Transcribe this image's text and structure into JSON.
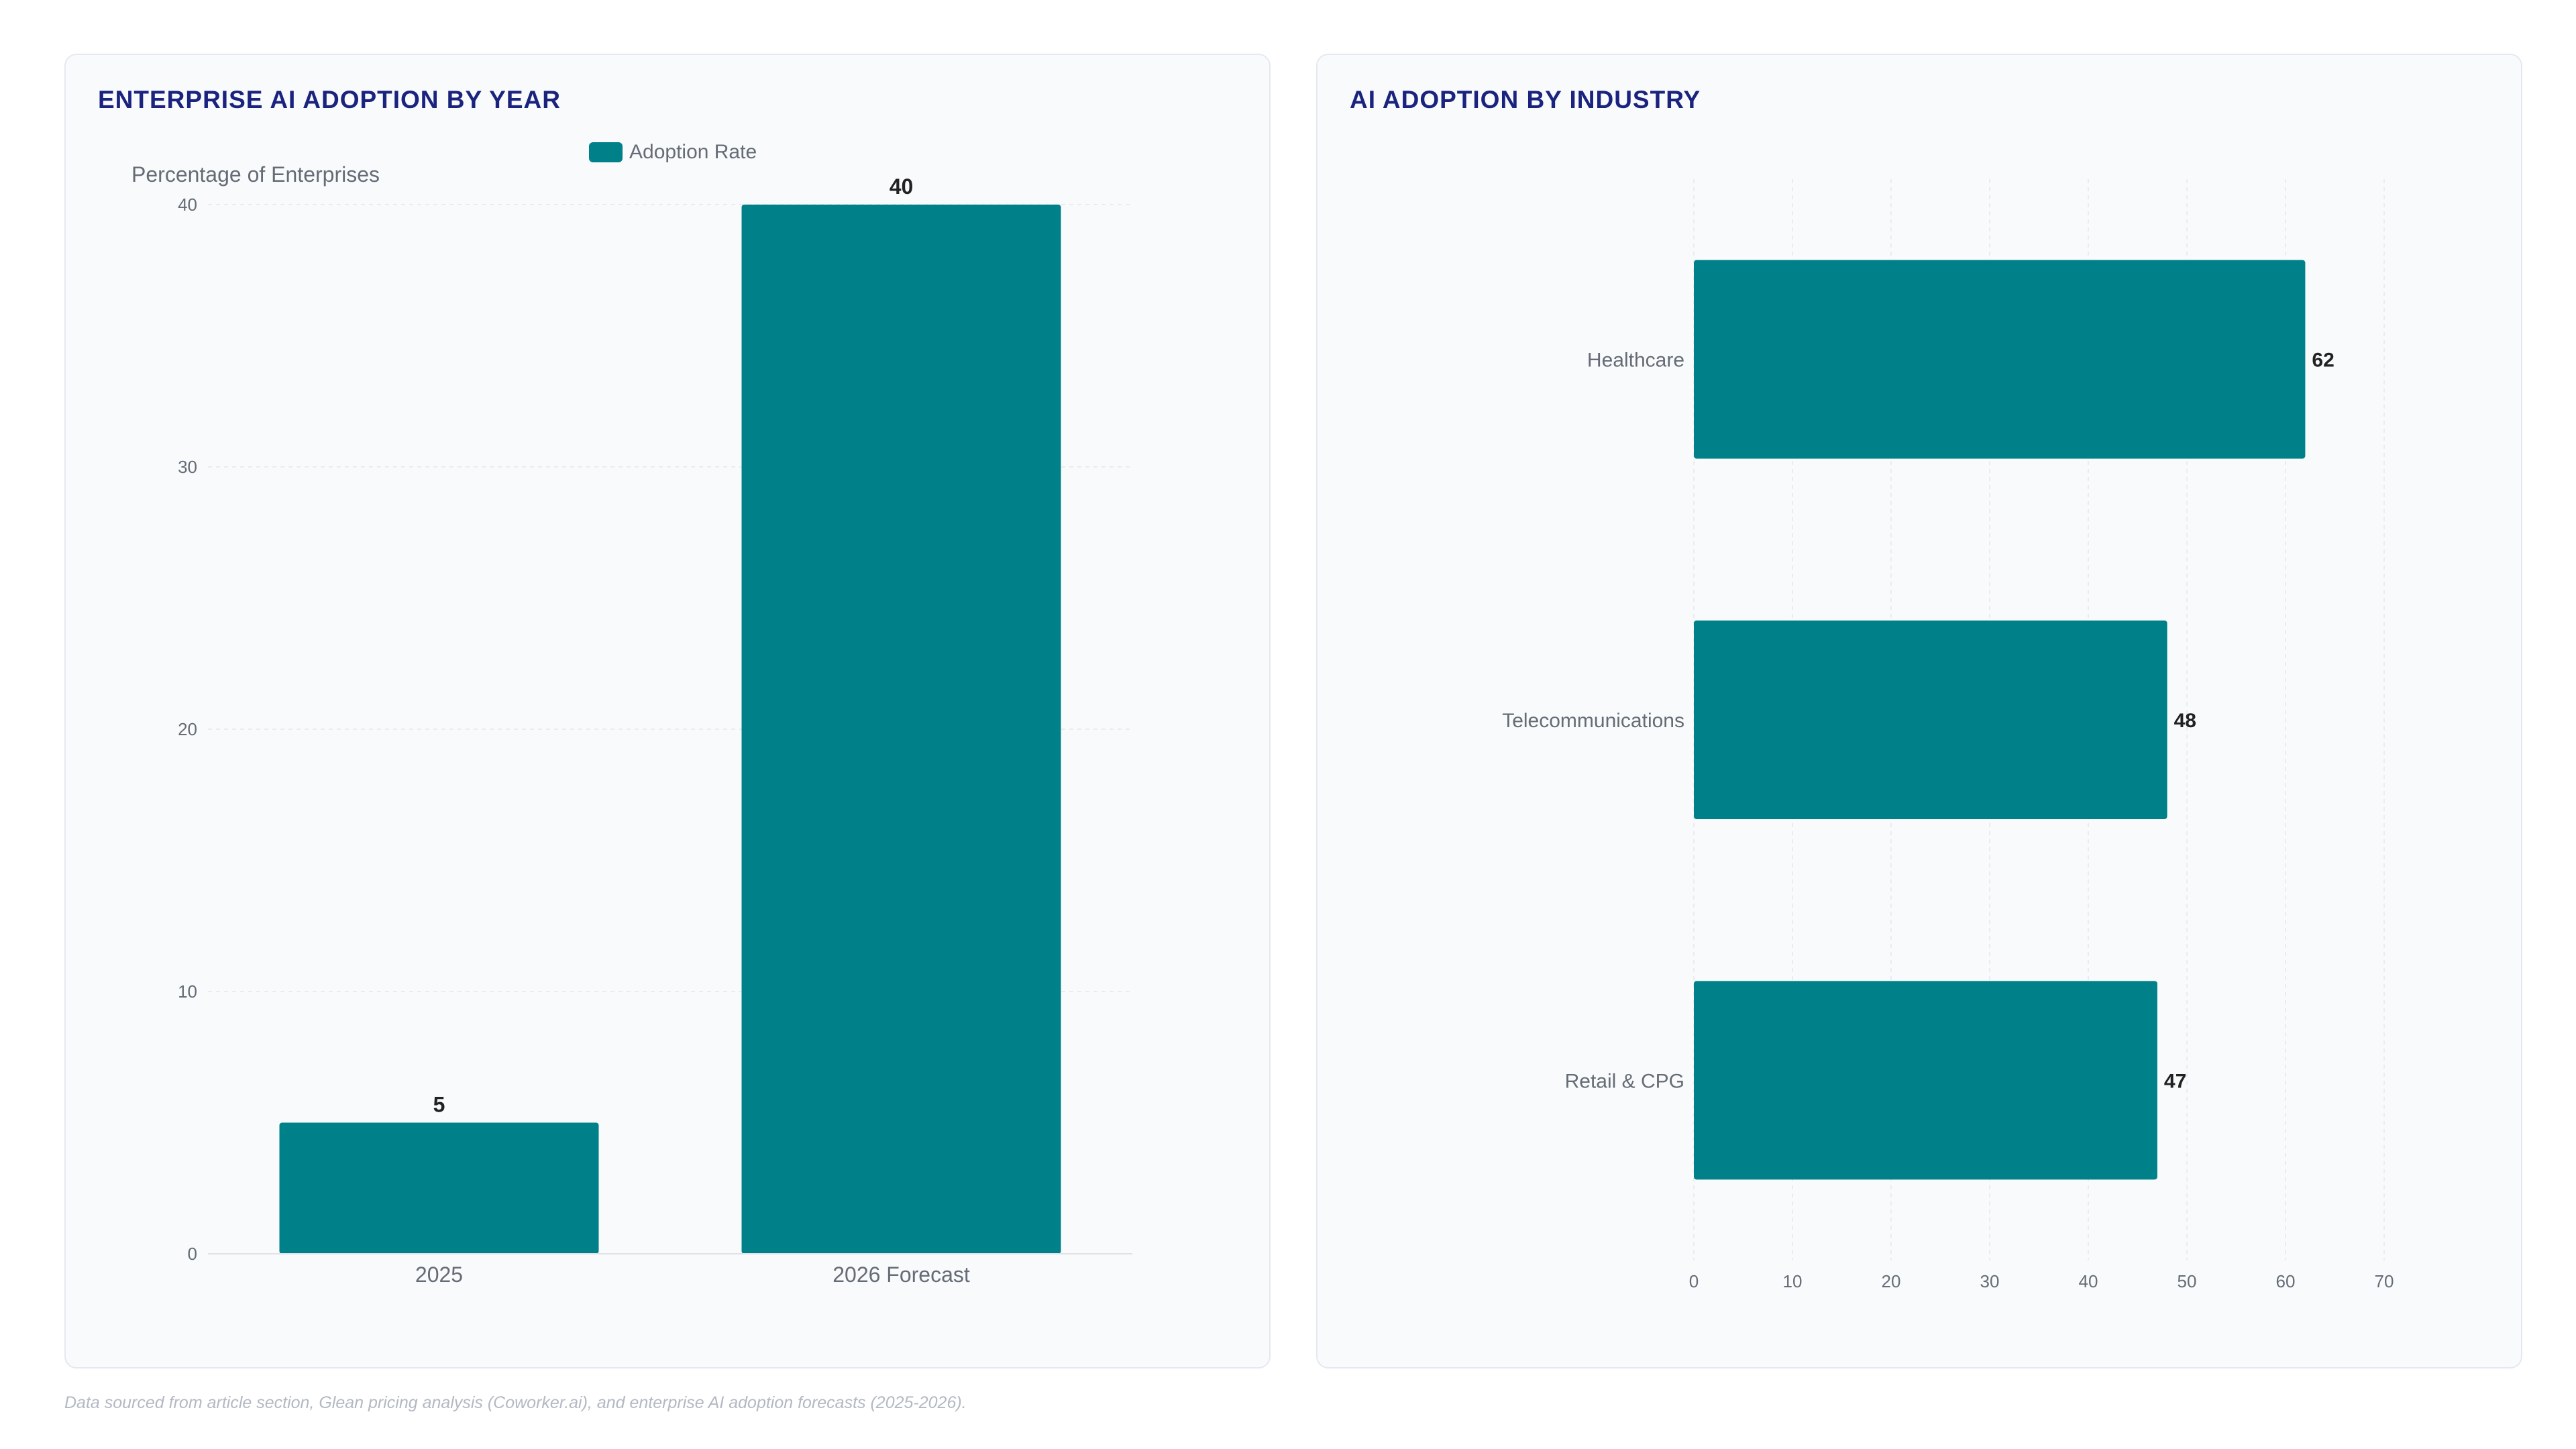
{
  "colors": {
    "bar": "#00818a",
    "title": "#1a237e",
    "grid": "#e9edf2",
    "tick_text": "#666c75",
    "value_text": "#222222"
  },
  "footnote": "Data sourced from article section, Glean pricing analysis (Coworker.ai), and enterprise AI adoption forecasts (2025-2026).",
  "chart_data": [
    {
      "type": "bar",
      "orientation": "vertical",
      "title": "ENTERPRISE AI ADOPTION BY YEAR",
      "ylabel": "Percentage of Enterprises",
      "legend": "top",
      "categories": [
        "2025",
        "2026 Forecast"
      ],
      "series": [
        {
          "name": "Adoption Rate",
          "values": [
            5,
            40
          ]
        }
      ],
      "ylim": [
        0,
        40
      ],
      "yticks": [
        0,
        10,
        20,
        30,
        40
      ],
      "grid": true,
      "data_labels": true
    },
    {
      "type": "bar",
      "orientation": "horizontal",
      "title": "AI ADOPTION BY INDUSTRY",
      "categories": [
        "Healthcare",
        "Telecommunications",
        "Retail & CPG"
      ],
      "values": [
        62,
        48,
        47
      ],
      "xlim": [
        0,
        70
      ],
      "xticks": [
        0,
        10,
        20,
        30,
        40,
        50,
        60,
        70
      ],
      "grid": true,
      "data_labels": true
    }
  ]
}
